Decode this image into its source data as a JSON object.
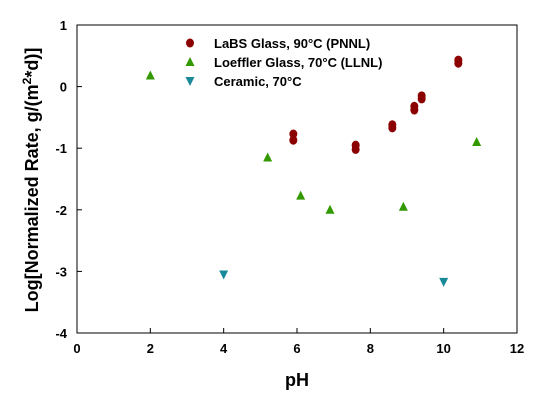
{
  "chart_data": {
    "type": "scatter",
    "title": "",
    "xlabel": "pH",
    "ylabel": "Log[Normalized Rate, g/(m²*d)]",
    "xlim": [
      0,
      12
    ],
    "ylim": [
      -4,
      1
    ],
    "xticks": [
      "0",
      "2",
      "4",
      "6",
      "8",
      "10",
      "12"
    ],
    "yticks": [
      "1",
      "0",
      "-1",
      "-2",
      "-3",
      "-4"
    ],
    "grid": false,
    "legend_position": "top-center",
    "series": [
      {
        "name": "LaBS Glass, 90°C (PNNL)",
        "color": "#8B0000",
        "marker": "circle",
        "points": [
          [
            5.9,
            -0.77
          ],
          [
            5.9,
            -0.87
          ],
          [
            7.6,
            -0.95
          ],
          [
            7.6,
            -1.02
          ],
          [
            8.6,
            -0.62
          ],
          [
            8.6,
            -0.67
          ],
          [
            9.2,
            -0.32
          ],
          [
            9.2,
            -0.38
          ],
          [
            9.4,
            -0.15
          ],
          [
            9.4,
            -0.2
          ],
          [
            10.4,
            0.38
          ],
          [
            10.4,
            0.43
          ]
        ]
      },
      {
        "name": "Loeffler Glass, 70°C (LLNL)",
        "color": "#339900",
        "marker": "triangle-up",
        "points": [
          [
            2.0,
            0.18
          ],
          [
            5.2,
            -1.15
          ],
          [
            6.1,
            -1.77
          ],
          [
            6.9,
            -2.0
          ],
          [
            8.9,
            -1.95
          ],
          [
            10.9,
            -0.9
          ]
        ]
      },
      {
        "name": "Ceramic, 70°C",
        "color": "#1a8a9a",
        "marker": "triangle-down",
        "points": [
          [
            4.0,
            -3.05
          ],
          [
            10.0,
            -3.17
          ]
        ]
      }
    ]
  }
}
